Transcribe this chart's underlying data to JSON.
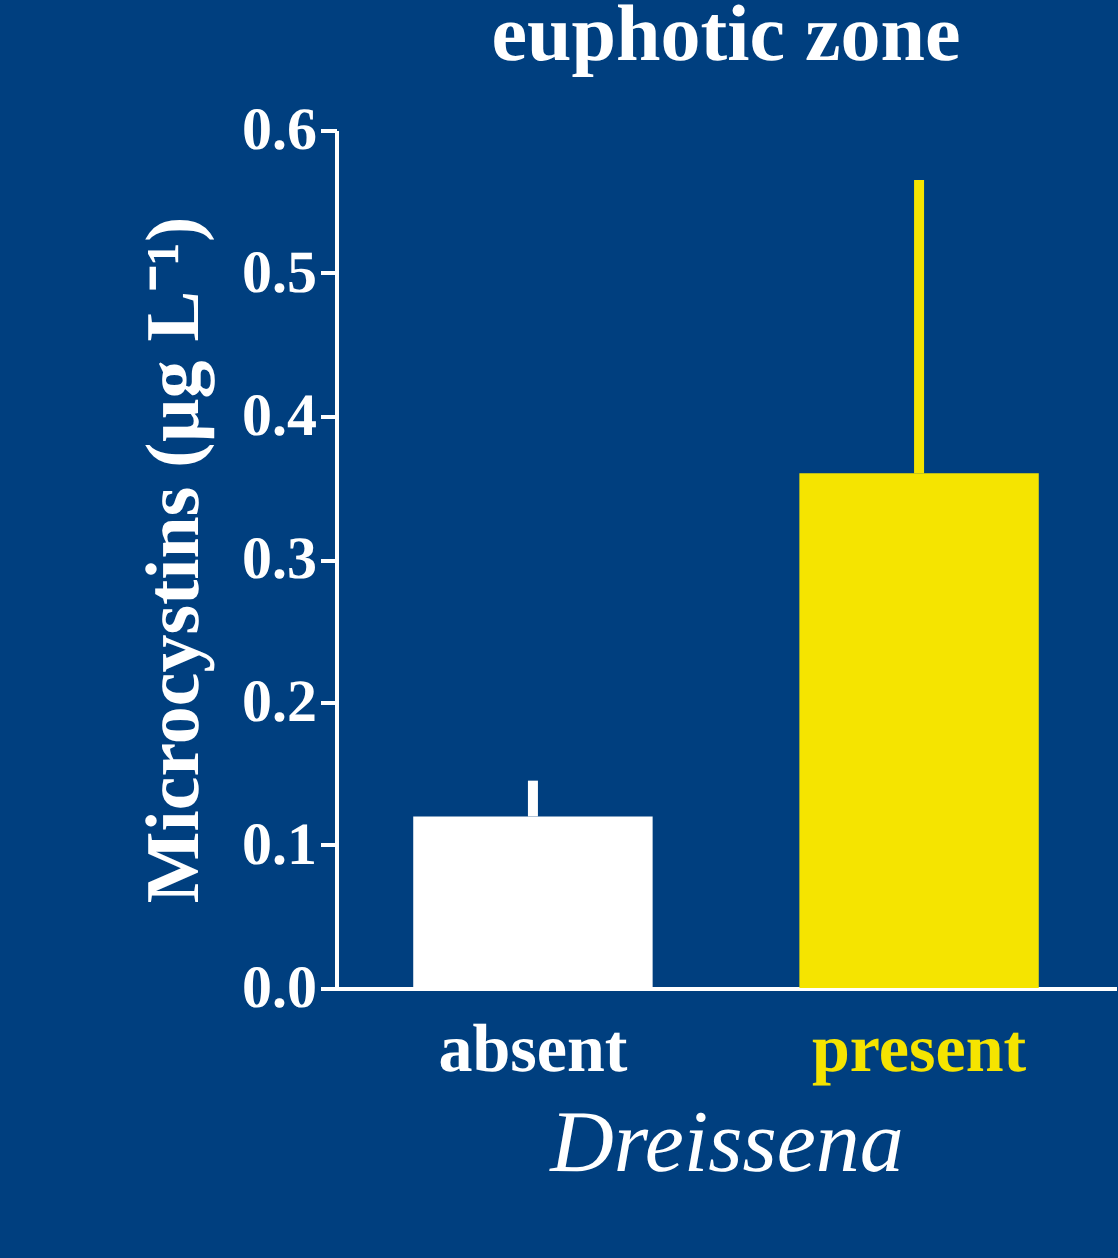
{
  "chart_data": {
    "type": "bar",
    "title": "euphotic zone",
    "xlabel": "Dreissena",
    "ylabel": "Microcystins (µg L⁻¹)",
    "categories": [
      "absent",
      "present"
    ],
    "values": [
      0.12,
      0.36
    ],
    "colors": [
      "#ffffff",
      "#f5e400"
    ],
    "errors": [
      [
        0.12,
        0.145
      ],
      [
        0.36,
        0.565
      ]
    ],
    "ylim": [
      0,
      0.6
    ],
    "yticks": [
      {
        "value": 0,
        "label": "0.0"
      },
      {
        "value": 0.1,
        "label": "0.1"
      },
      {
        "value": 0.2,
        "label": "0.2"
      },
      {
        "value": 0.3,
        "label": "0.3"
      },
      {
        "value": 0.4,
        "label": "0.4"
      },
      {
        "value": 0.5,
        "label": "0.5"
      },
      {
        "value": 0.6,
        "label": "0.6"
      }
    ],
    "grid": false,
    "legend": false
  }
}
